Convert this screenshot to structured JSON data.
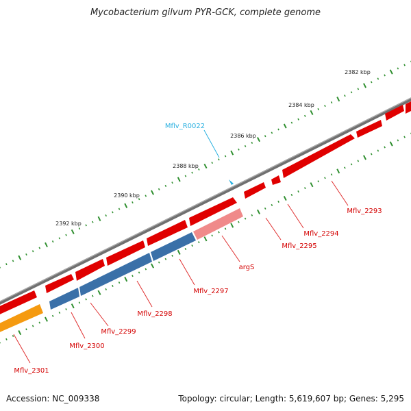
{
  "title": "Mycobacterium gilvum PYR-GCK, complete genome",
  "footer": {
    "accession": "Accession: NC_009338",
    "summary": "Topology: circular; Length: 5,619,607 bp; Genes: 5,295"
  },
  "colors": {
    "backbone": "#8a8a8a",
    "gene_forward": "#e00000",
    "gene_forward_light": "#f08a8a",
    "gene_reverse": "#3a70a8",
    "gene_other": "#f59a10",
    "trna": "#2ab0e0",
    "tick_major": "#2f8f2f",
    "tick_minor": "#2f8f2f"
  },
  "tick_labels": [
    "2382 kbp",
    "2384 kbp",
    "2386 kbp",
    "2388 kbp",
    "2390 kbp",
    "2392 kbp"
  ],
  "genes": [
    {
      "name": "Mflv_2293",
      "type": "CDS"
    },
    {
      "name": "Mflv_2294",
      "type": "CDS"
    },
    {
      "name": "Mflv_2295",
      "type": "CDS"
    },
    {
      "name": "argS",
      "type": "CDS"
    },
    {
      "name": "Mflv_2297",
      "type": "CDS"
    },
    {
      "name": "Mflv_2298",
      "type": "CDS"
    },
    {
      "name": "Mflv_2299",
      "type": "CDS"
    },
    {
      "name": "Mflv_2300",
      "type": "CDS"
    },
    {
      "name": "Mflv_2301",
      "type": "CDS"
    },
    {
      "name": "Mflv_R0022",
      "type": "tRNA"
    }
  ]
}
